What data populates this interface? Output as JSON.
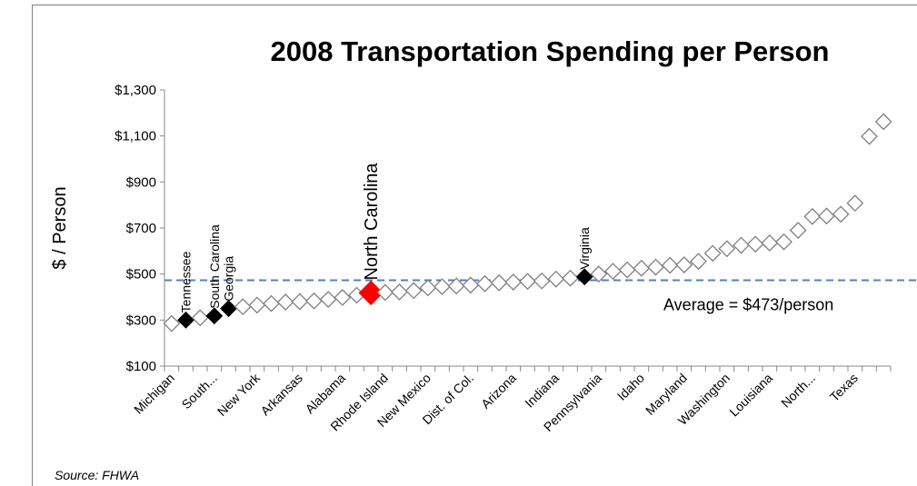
{
  "chart_data": {
    "type": "scatter",
    "title": "2008 Transportation Spending per Person",
    "y_label": "$ / Person",
    "source": "Source: FHWA",
    "categories": [
      "Michigan",
      null,
      null,
      "South...",
      null,
      null,
      "New York",
      null,
      null,
      "Arkansas",
      null,
      null,
      "Alabama",
      null,
      null,
      "Rhode Island",
      null,
      null,
      "New Mexico",
      null,
      null,
      "Dist. of Col.",
      null,
      null,
      "Arizona",
      null,
      null,
      "Indiana",
      null,
      null,
      "Pennsylvania",
      null,
      null,
      "Idaho",
      null,
      null,
      "Maryland",
      null,
      null,
      "Washington",
      null,
      null,
      "Louisiana",
      null,
      null,
      "North...",
      null,
      null,
      "Texas",
      null,
      null
    ],
    "values": [
      285,
      300,
      310,
      318,
      350,
      358,
      365,
      372,
      378,
      380,
      383,
      390,
      398,
      408,
      418,
      420,
      422,
      428,
      440,
      445,
      448,
      452,
      458,
      462,
      465,
      468,
      470,
      478,
      482,
      488,
      500,
      512,
      518,
      525,
      530,
      538,
      540,
      555,
      590,
      610,
      625,
      630,
      635,
      640,
      690,
      750,
      752,
      760,
      808,
      1098,
      1162
    ],
    "point_labels": [
      null,
      "Tennessee",
      null,
      "South Carolina",
      "Georgia",
      null,
      null,
      null,
      null,
      null,
      null,
      null,
      null,
      null,
      "North Carolina",
      null,
      null,
      null,
      null,
      null,
      null,
      null,
      null,
      null,
      null,
      null,
      null,
      null,
      null,
      "Virginia",
      null,
      null,
      null,
      null,
      null,
      null,
      null,
      null,
      null,
      null,
      null,
      null,
      null,
      null,
      null,
      null,
      null,
      null,
      null,
      null,
      null
    ],
    "color": "#7f7f7f",
    "highlight_color": "#000000",
    "focus": "North Carolina",
    "focus_color": "#ff0000",
    "average": 473,
    "average_label": "Average = $473/person",
    "average_color": "#4f81bd",
    "ylim": [
      100,
      1300
    ],
    "yticks": [
      {
        "value": 100,
        "label": "$100"
      },
      {
        "value": 300,
        "label": "$300"
      },
      {
        "value": 500,
        "label": "$500"
      },
      {
        "value": 700,
        "label": "$700"
      },
      {
        "value": 900,
        "label": "$900"
      },
      {
        "value": 1100,
        "label": "$1,100"
      },
      {
        "value": 1300,
        "label": "$1,300"
      }
    ]
  }
}
